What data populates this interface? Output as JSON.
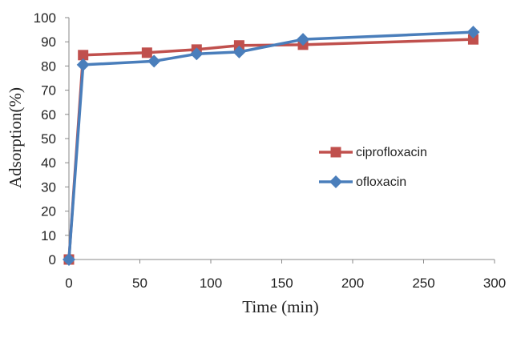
{
  "chart_data": {
    "type": "line",
    "title": "",
    "xlabel": "Time (min)",
    "ylabel": "Adsorption(%)",
    "xlim": [
      0,
      300
    ],
    "ylim": [
      0,
      100
    ],
    "xticks": [
      0,
      50,
      100,
      150,
      200,
      250,
      300
    ],
    "yticks": [
      0,
      10,
      20,
      30,
      40,
      50,
      60,
      70,
      80,
      90,
      100
    ],
    "grid": false,
    "legend_position": "right",
    "series": [
      {
        "name": "ciprofloxacin",
        "color": "#C0504D",
        "marker": "square",
        "x": [
          0,
          10,
          55,
          90,
          120,
          165,
          285
        ],
        "y": [
          0,
          84.5,
          85.5,
          86.8,
          88.5,
          88.8,
          91
        ]
      },
      {
        "name": "ofloxacin",
        "color": "#4A7EBB",
        "marker": "diamond",
        "x": [
          0,
          10,
          60,
          90,
          120,
          165,
          285
        ],
        "y": [
          0,
          80.5,
          82,
          85,
          85.8,
          91,
          94
        ]
      }
    ]
  }
}
